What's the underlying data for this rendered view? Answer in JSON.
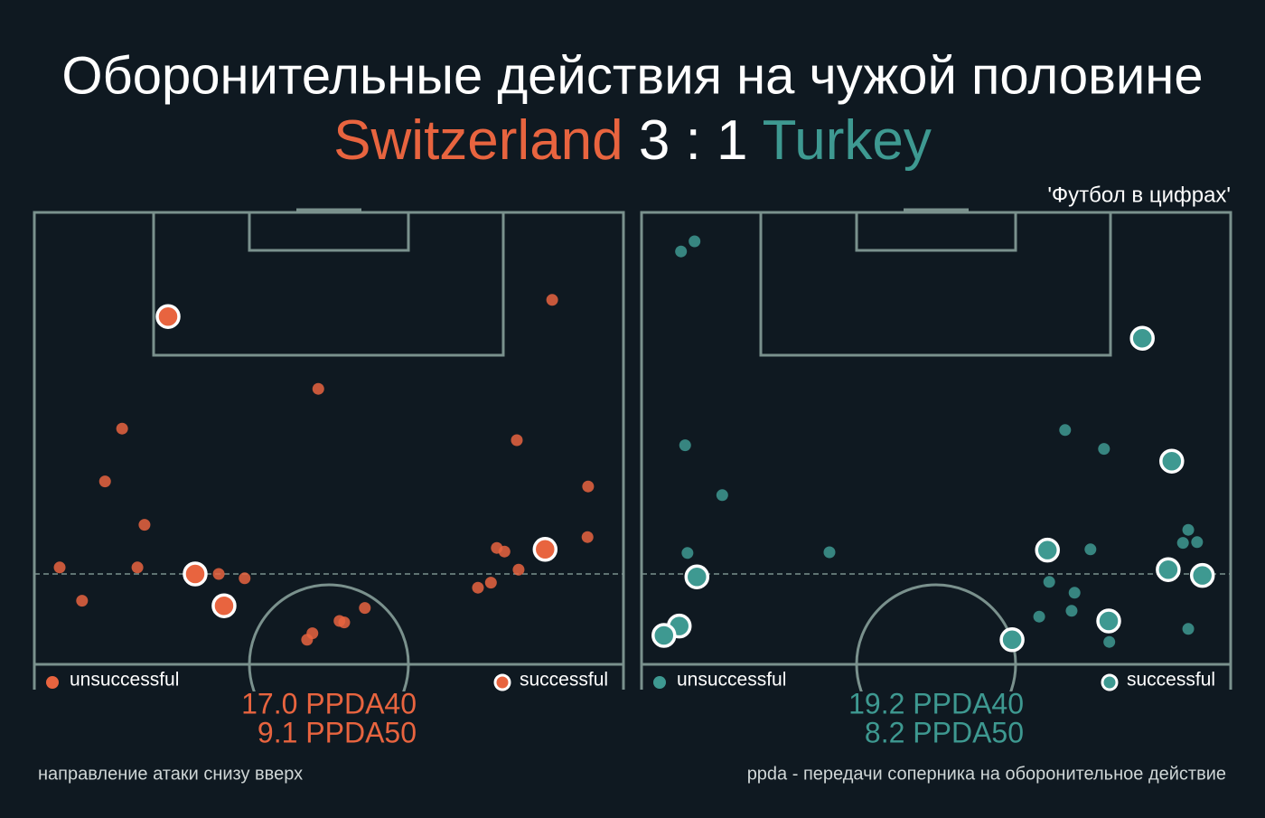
{
  "header": {
    "title": "Оборонительные действия на чужой половине",
    "home": {
      "name": "Switzerland",
      "color": "#e8643f"
    },
    "score": "3 : 1",
    "away": {
      "name": "Turkey",
      "color": "#3e9991"
    },
    "source": "'Футбол в цифрах'"
  },
  "chart_data": [
    {
      "type": "scatter",
      "xlim": [
        0,
        100
      ],
      "ylim": [
        37.5,
        100
      ],
      "annotations": [
        "17.0 PPDA40",
        "9.1 PPDA50"
      ],
      "series": [
        {
          "name": "unsuccessful",
          "color": "#e8643f",
          "x": [
            14.9,
            12.0,
            18.7,
            17.5,
            4.3,
            8.1,
            31.3,
            35.7,
            48.2,
            56.1,
            51.8,
            52.6,
            47.2,
            46.3,
            81.9,
            87.9,
            94.0,
            93.9,
            78.5,
            79.8,
            82.2,
            77.5,
            75.3
          ],
          "values": [
            70.1,
            62.8,
            56.8,
            50.9,
            50.9,
            46.3,
            50.0,
            49.4,
            75.6,
            45.3,
            43.5,
            43.3,
            41.8,
            40.9,
            68.5,
            87.9,
            62.1,
            55.1,
            53.6,
            53.1,
            50.6,
            48.8,
            48.1
          ]
        },
        {
          "name": "successful",
          "color": "#e8643f",
          "x": [
            22.7,
            27.3,
            32.2,
            86.7
          ],
          "values": [
            85.6,
            50.0,
            45.6,
            53.4
          ]
        }
      ]
    },
    {
      "type": "scatter",
      "xlim": [
        0,
        100
      ],
      "ylim": [
        37.5,
        100
      ],
      "annotations": [
        "19.2 PPDA40",
        "8.2 PPDA50"
      ],
      "series": [
        {
          "name": "unsuccessful",
          "color": "#3e9991",
          "x": [
            6.7,
            9.0,
            7.4,
            13.7,
            7.8,
            31.9,
            71.9,
            78.5,
            76.2,
            69.2,
            73.5,
            67.5,
            73.0,
            79.4,
            92.8,
            91.9,
            94.3,
            92.8
          ],
          "values": [
            94.6,
            96.0,
            67.8,
            60.9,
            52.9,
            53.0,
            69.9,
            67.3,
            53.4,
            48.9,
            47.4,
            44.1,
            44.9,
            40.6,
            56.1,
            54.3,
            54.4,
            42.4
          ]
        },
        {
          "name": "successful",
          "color": "#3e9991",
          "x": [
            85.0,
            90.0,
            68.9,
            9.4,
            6.4,
            3.8,
            89.4,
            95.2,
            79.3,
            62.9
          ],
          "values": [
            82.6,
            65.6,
            53.3,
            49.6,
            42.8,
            41.5,
            50.6,
            49.8,
            43.5,
            40.9
          ]
        }
      ]
    }
  ],
  "footnotes": [
    "направление атаки снизу вверх",
    "ppda - передачи соперника на оборонительное действие"
  ]
}
